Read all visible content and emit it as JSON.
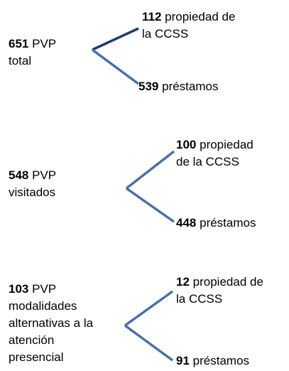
{
  "groups": [
    {
      "value": 651,
      "label_lines": [
        "PVP",
        "total"
      ],
      "branches": [
        {
          "value": 112,
          "label_lines": [
            "propiedad de",
            "la CCSS"
          ]
        },
        {
          "value": 539,
          "label_lines": [
            "préstamos"
          ]
        }
      ]
    },
    {
      "value": 548,
      "label_lines": [
        "PVP",
        "visitados"
      ],
      "branches": [
        {
          "value": 100,
          "label_lines": [
            "propiedad",
            "de la CCSS"
          ]
        },
        {
          "value": 448,
          "label_lines": [
            "préstamos"
          ]
        }
      ]
    },
    {
      "value": 103,
      "label_lines": [
        "PVP",
        "modalidades",
        "alternativas a la",
        "atención",
        "presencial"
      ],
      "branches": [
        {
          "value": 12,
          "label_lines": [
            "propiedad de",
            "la CCSS"
          ]
        },
        {
          "value": 91,
          "label_lines": [
            "préstamos"
          ]
        }
      ]
    }
  ]
}
